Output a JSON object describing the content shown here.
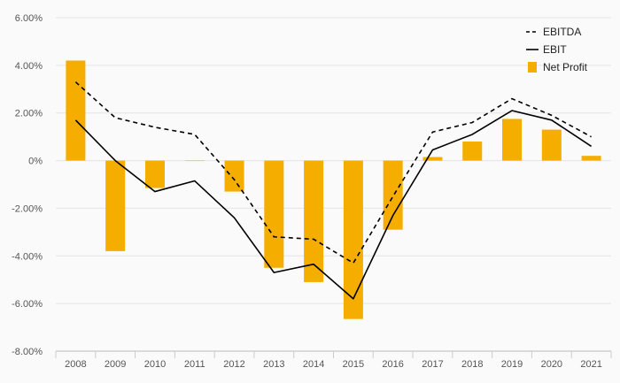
{
  "chart_data": {
    "type": "bar",
    "categories": [
      "2008",
      "2009",
      "2010",
      "2011",
      "2012",
      "2013",
      "2014",
      "2015",
      "2016",
      "2017",
      "2018",
      "2019",
      "2020",
      "2021"
    ],
    "series": [
      {
        "name": "EBITDA",
        "type": "line",
        "style": "dashed",
        "color": "#000000",
        "values": [
          3.3,
          1.8,
          1.4,
          1.1,
          -0.8,
          -3.2,
          -3.3,
          -4.3,
          -1.5,
          1.2,
          1.6,
          2.6,
          1.9,
          1.0
        ]
      },
      {
        "name": "EBIT",
        "type": "line",
        "style": "solid",
        "color": "#000000",
        "values": [
          1.7,
          0.0,
          -1.3,
          -0.85,
          -2.4,
          -4.7,
          -4.35,
          -5.8,
          -2.3,
          0.45,
          1.1,
          2.1,
          1.7,
          0.6
        ]
      },
      {
        "name": "Net Profit",
        "type": "bar",
        "color": "#f5ad00",
        "values": [
          4.2,
          -3.8,
          -1.15,
          0.0,
          -1.3,
          -4.5,
          -5.1,
          -6.65,
          -2.9,
          0.15,
          0.8,
          1.75,
          1.3,
          0.2
        ]
      }
    ],
    "yticks": [
      "6.00%",
      "4.00%",
      "2.00%",
      "0%",
      "-2.00%",
      "-4.00%",
      "-6.00%",
      "-8.00%"
    ],
    "ylim": [
      -8,
      6
    ],
    "legend_position": "top-right",
    "grid": true
  }
}
